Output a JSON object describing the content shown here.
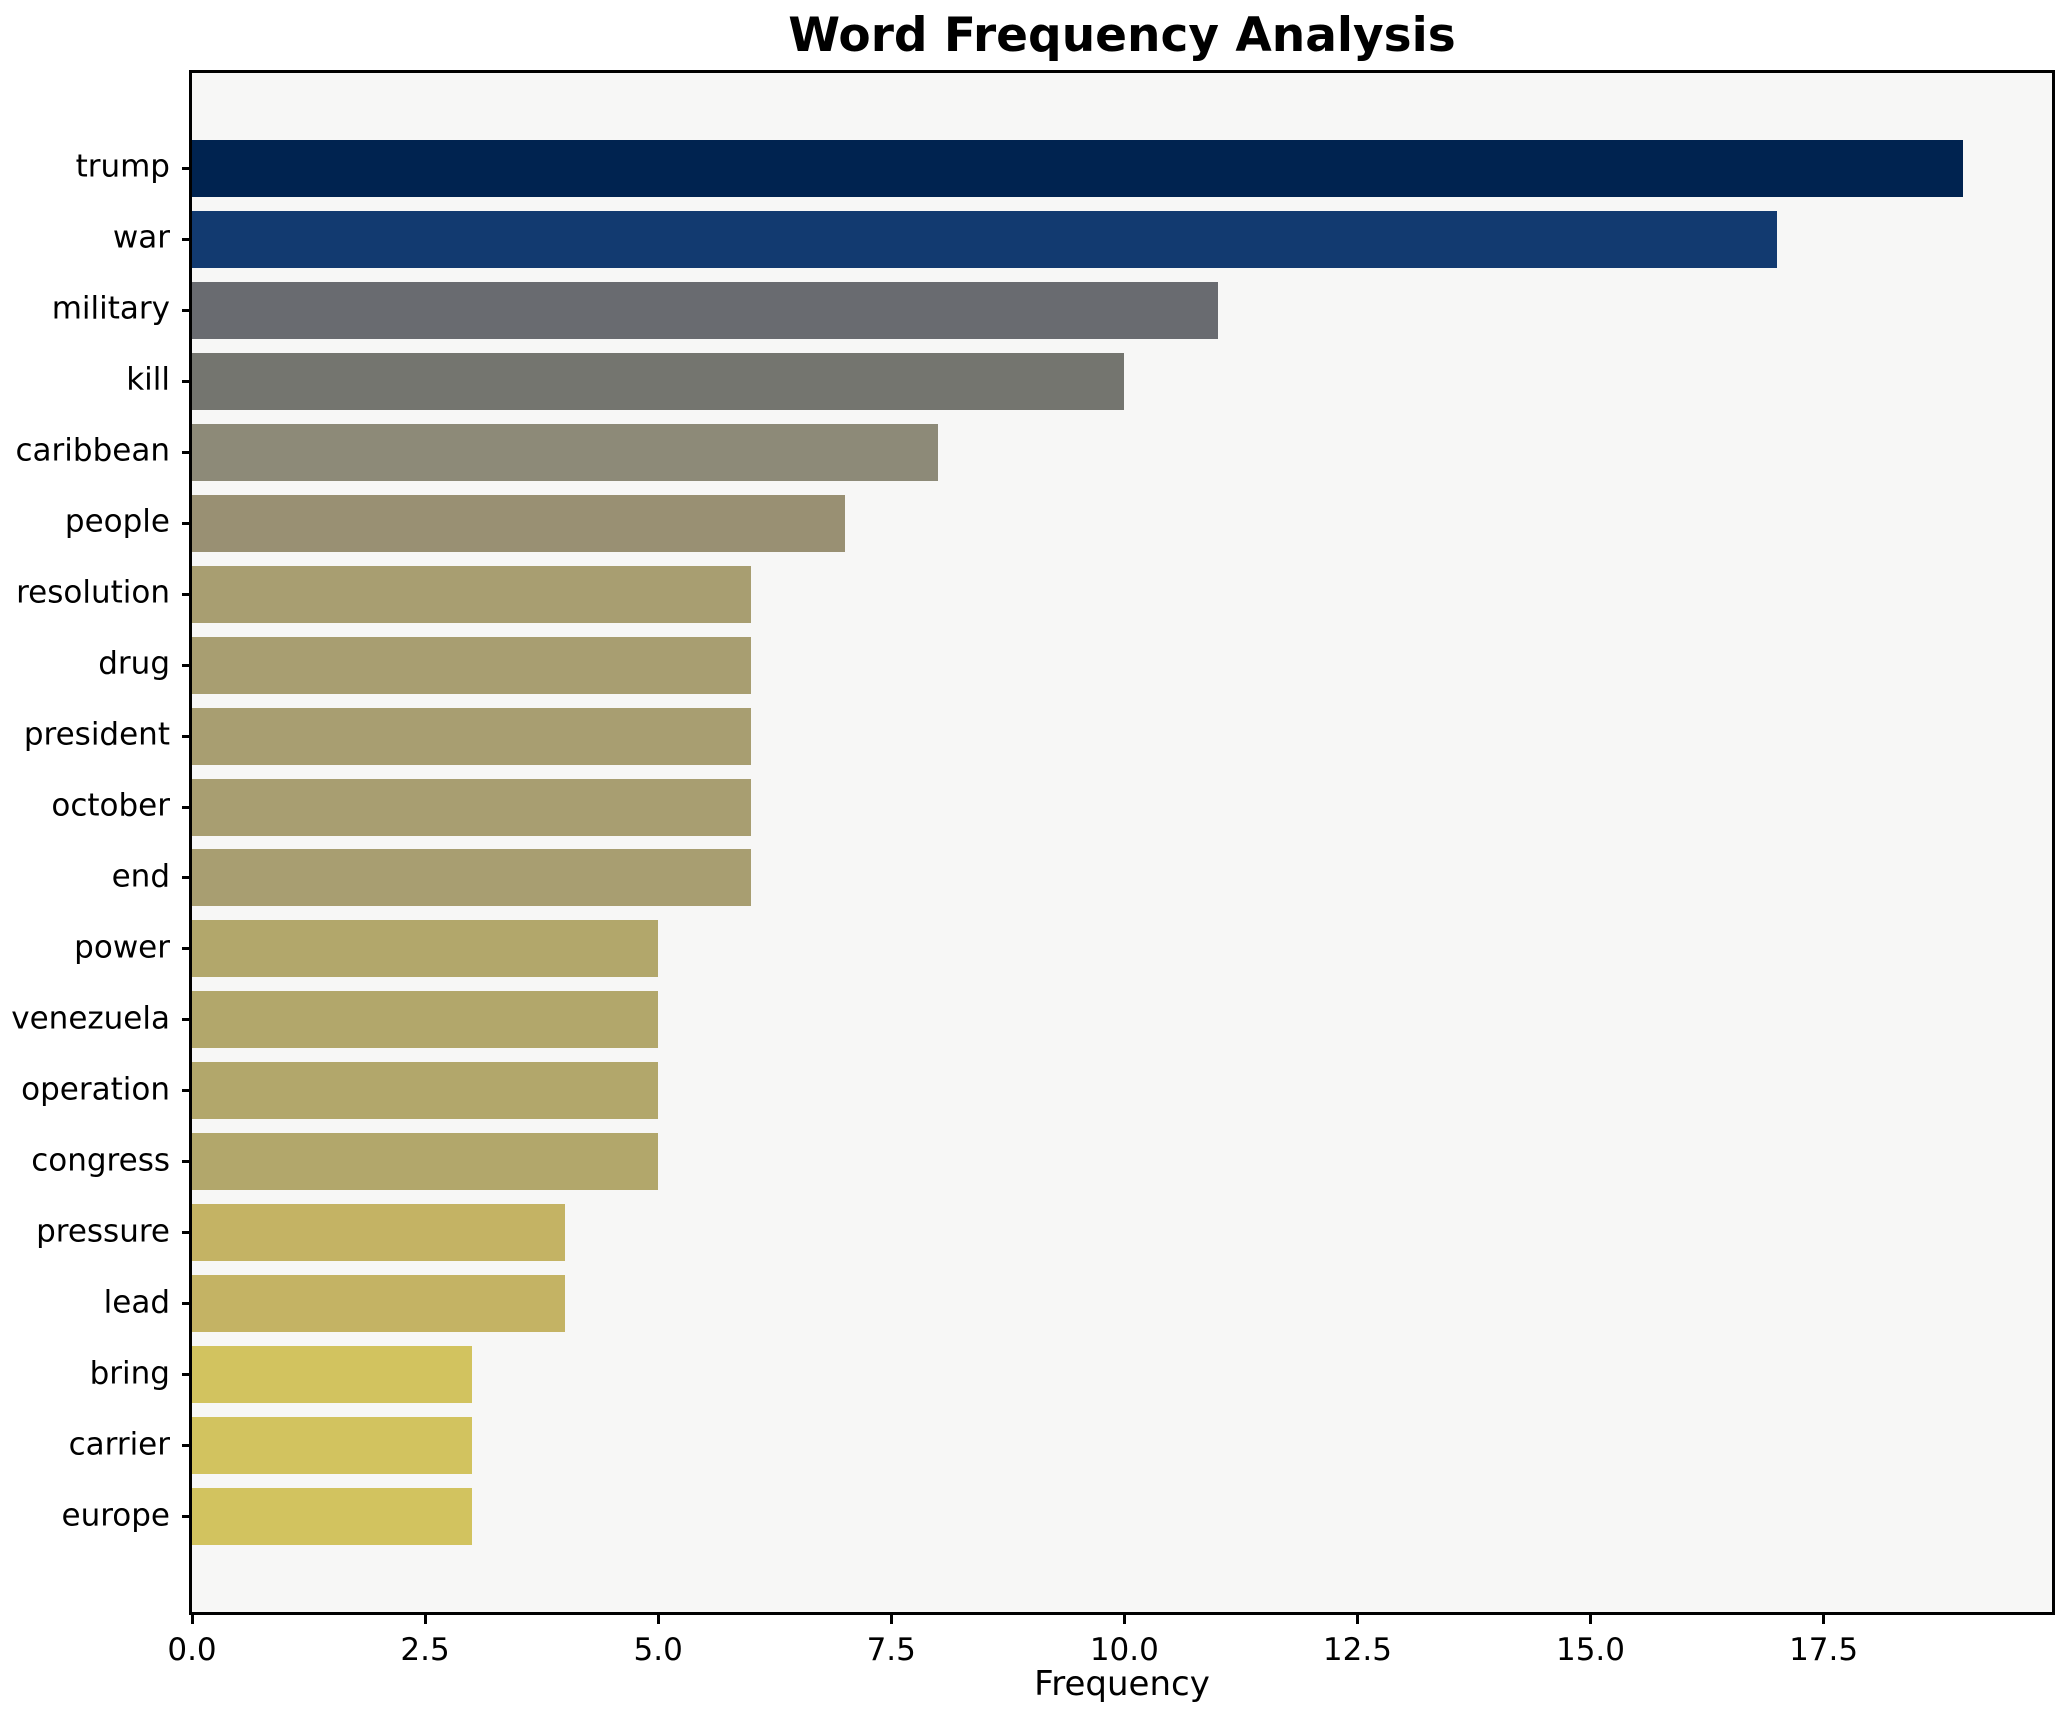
{
  "chart_data": {
    "type": "bar",
    "orientation": "horizontal",
    "title": "Word Frequency Analysis",
    "xlabel": "Frequency",
    "ylabel": "",
    "categories": [
      "trump",
      "war",
      "military",
      "kill",
      "caribbean",
      "people",
      "resolution",
      "drug",
      "president",
      "october",
      "end",
      "power",
      "venezuela",
      "operation",
      "congress",
      "pressure",
      "lead",
      "bring",
      "carrier",
      "europe"
    ],
    "values": [
      19,
      17,
      11,
      10,
      8,
      7,
      6,
      6,
      6,
      6,
      6,
      5,
      5,
      5,
      5,
      4,
      4,
      3,
      3,
      3
    ],
    "bar_colors": [
      "#002350",
      "#123a70",
      "#696b70",
      "#74756f",
      "#8d8a78",
      "#999073",
      "#a89e71",
      "#a89e71",
      "#a89e71",
      "#a89e71",
      "#a89e71",
      "#b2a76b",
      "#b2a76b",
      "#b2a76b",
      "#b2a76b",
      "#c4b364",
      "#c4b364",
      "#d2c35f",
      "#d2c35f",
      "#d2c35f"
    ],
    "colormap": "cividis",
    "xlim": [
      0,
      19.95
    ],
    "x_ticks": [
      0,
      2.5,
      5,
      7.5,
      10,
      12.5,
      15,
      17.5
    ],
    "x_tick_labels": [
      "0.0",
      "2.5",
      "5.0",
      "7.5",
      "10.0",
      "12.5",
      "15.0",
      "17.5"
    ],
    "grid": false,
    "legend": false,
    "plot_background": "#f7f7f6",
    "figure_background": "#ffffff",
    "spine_color": "#000000"
  }
}
